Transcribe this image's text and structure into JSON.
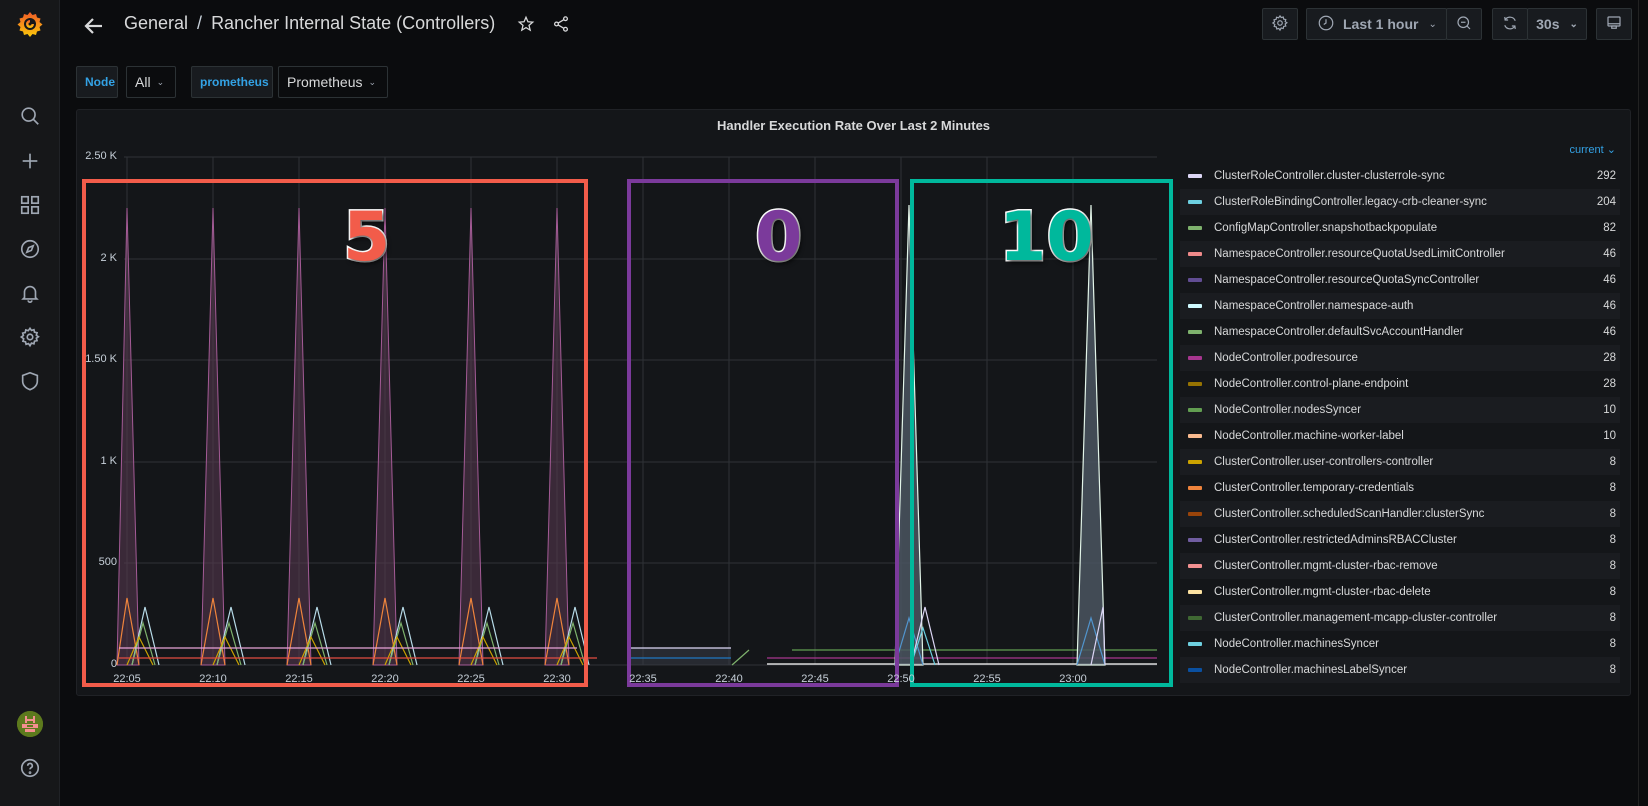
{
  "app": {
    "brand_color": "#f05a28",
    "accent": "#33a2e5"
  },
  "sidebar": {
    "items": [
      {
        "name": "search",
        "icon": "search-icon"
      },
      {
        "name": "create",
        "icon": "plus-icon"
      },
      {
        "name": "dashboards",
        "icon": "grid-icon"
      },
      {
        "name": "explore",
        "icon": "compass-icon"
      },
      {
        "name": "alerting",
        "icon": "bell-icon"
      },
      {
        "name": "configuration",
        "icon": "gear-icon"
      },
      {
        "name": "server-admin",
        "icon": "shield-icon"
      }
    ],
    "bottom": [
      {
        "name": "profile",
        "icon": "avatar"
      },
      {
        "name": "help",
        "icon": "help-icon"
      }
    ]
  },
  "header": {
    "folder": "General",
    "separator": "/",
    "title": "Rancher Internal State (Controllers)",
    "time_range": "Last 1 hour",
    "refresh_interval": "30s"
  },
  "variables": [
    {
      "label": "Node",
      "value": "All"
    },
    {
      "label": "prometheus",
      "value": "Prometheus"
    }
  ],
  "panel": {
    "title": "Handler Execution Rate Over Last 2 Minutes",
    "legend_header": "current",
    "legend_sort_icon": "chevron-down-icon"
  },
  "annotations": [
    {
      "label": "5",
      "color": "#f25c4a"
    },
    {
      "label": "0",
      "color": "#7b3a9b"
    },
    {
      "label": "10",
      "color": "#00b89c"
    }
  ],
  "chart_data": {
    "type": "area",
    "title": "Handler Execution Rate Over Last 2 Minutes",
    "xlabel": "",
    "ylabel": "",
    "ylim": [
      0,
      2500
    ],
    "y_ticks": [
      "0",
      "500",
      "1 K",
      "1.50 K",
      "2 K",
      "2.50 K"
    ],
    "x_ticks": [
      "22:05",
      "22:10",
      "22:15",
      "22:20",
      "22:25",
      "22:30",
      "22:35",
      "22:40",
      "22:45",
      "22:50",
      "22:55",
      "23:00"
    ],
    "grid": true,
    "legend_position": "right",
    "spikes": [
      {
        "x": "22:05",
        "value": 2250
      },
      {
        "x": "22:10",
        "value": 2250
      },
      {
        "x": "22:15",
        "value": 2250
      },
      {
        "x": "22:20",
        "value": 2250
      },
      {
        "x": "22:25",
        "value": 2250
      },
      {
        "x": "22:30",
        "value": 2250
      },
      {
        "x": "22:53",
        "value": 2250
      },
      {
        "x": "23:03",
        "value": 2250
      }
    ],
    "series": [
      {
        "name": "ClusterRoleController.cluster-clusterrole-sync",
        "current": 292,
        "color": "#dcd6f5"
      },
      {
        "name": "ClusterRoleBindingController.legacy-crb-cleaner-sync",
        "current": 204,
        "color": "#6ccfe0"
      },
      {
        "name": "ConfigMapController.snapshotbackpopulate",
        "current": 82,
        "color": "#7eb26d"
      },
      {
        "name": "NamespaceController.resourceQuotaUsedLimitController",
        "current": 46,
        "color": "#ef8a8a"
      },
      {
        "name": "NamespaceController.resourceQuotaSyncController",
        "current": 46,
        "color": "#614d93"
      },
      {
        "name": "NamespaceController.namespace-auth",
        "current": 46,
        "color": "#cffaff"
      },
      {
        "name": "NamespaceController.defaultSvcAccountHandler",
        "current": 46,
        "color": "#7eb26d"
      },
      {
        "name": "NodeController.podresource",
        "current": 28,
        "color": "#a7368f"
      },
      {
        "name": "NodeController.control-plane-endpoint",
        "current": 28,
        "color": "#967302"
      },
      {
        "name": "NodeController.nodesSyncer",
        "current": 10,
        "color": "#629e51"
      },
      {
        "name": "NodeController.machine-worker-label",
        "current": 10,
        "color": "#f9ba8f"
      },
      {
        "name": "ClusterController.user-controllers-controller",
        "current": 8,
        "color": "#cca300"
      },
      {
        "name": "ClusterController.temporary-credentials",
        "current": 8,
        "color": "#ef843c"
      },
      {
        "name": "ClusterController.scheduledScanHandler:clusterSync",
        "current": 8,
        "color": "#99440a"
      },
      {
        "name": "ClusterController.restrictedAdminsRBACCluster",
        "current": 8,
        "color": "#705da0"
      },
      {
        "name": "ClusterController.mgmt-cluster-rbac-remove",
        "current": 8,
        "color": "#f29191"
      },
      {
        "name": "ClusterController.mgmt-cluster-rbac-delete",
        "current": 8,
        "color": "#fce2a1"
      },
      {
        "name": "ClusterController.management-mcapp-cluster-controller",
        "current": 8,
        "color": "#3f6833"
      },
      {
        "name": "NodeController.machinesSyncer",
        "current": 8,
        "color": "#6ed0e0"
      },
      {
        "name": "NodeController.machinesLabelSyncer",
        "current": 8,
        "color": "#0a50a1"
      }
    ]
  }
}
